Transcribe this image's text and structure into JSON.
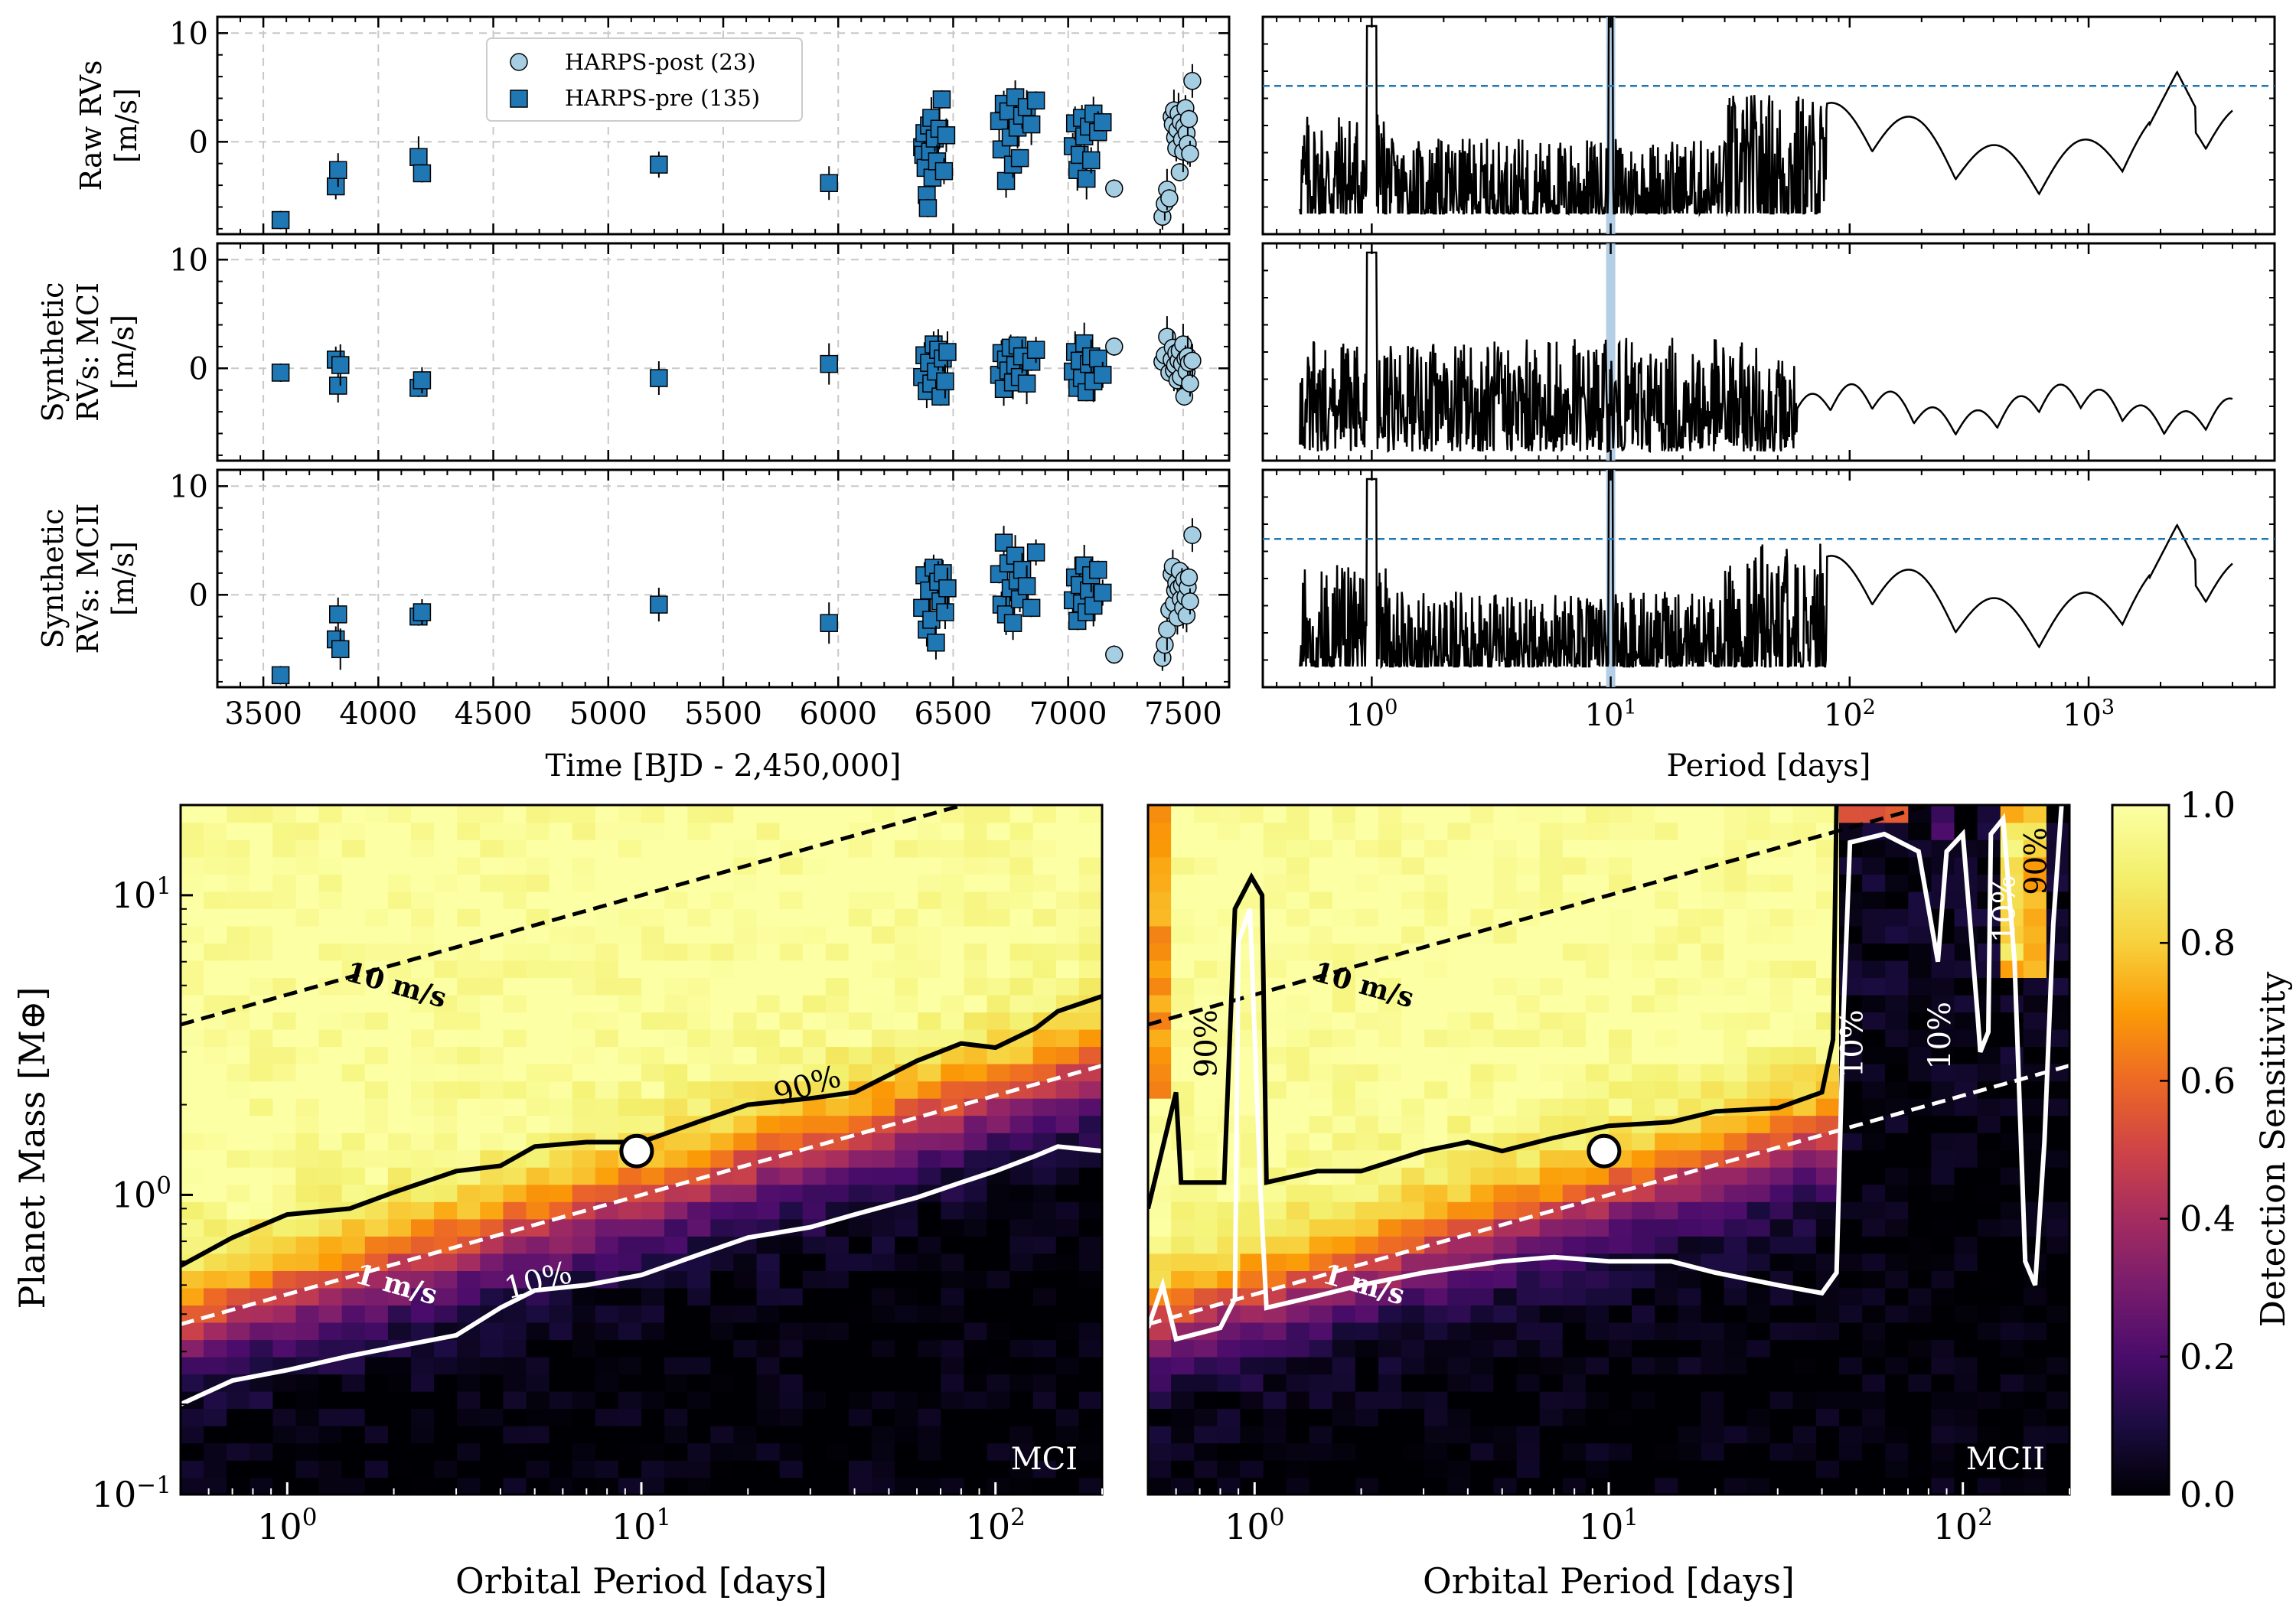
{
  "legend": {
    "harps_post": "HARPS-post (23)",
    "harps_pre": "HARPS-pre (135)"
  },
  "colors": {
    "harps_pre": "#1f77b4",
    "harps_post": "#a6cee3",
    "threshold_line": "#1f77b4",
    "period_band": "#a6c6e0",
    "contour_90": "#000000",
    "contour_10": "#ffffff"
  },
  "chart_data": [
    {
      "type": "scatter",
      "panel": "rv-raw",
      "ylabel": [
        "Raw RVs",
        "[m/s]"
      ],
      "xlim": [
        3300,
        7700
      ],
      "ylim": [
        -8.5,
        11.5
      ],
      "yticks": [
        -10,
        0,
        10
      ],
      "ytick_labels": [
        "",
        "0",
        "10"
      ],
      "series": [
        {
          "name": "HARPS-pre (135)",
          "x": [
            3575,
            3815,
            3825,
            4175,
            4190,
            5220,
            5960,
            6365,
            6370,
            6375,
            6380,
            6385,
            6390,
            6395,
            6400,
            6405,
            6410,
            6420,
            6430,
            6440,
            6450,
            6460,
            6470,
            6700,
            6710,
            6720,
            6730,
            6740,
            6750,
            6760,
            6770,
            6780,
            6790,
            6800,
            6820,
            6840,
            6860,
            7020,
            7030,
            7040,
            7050,
            7060,
            7070,
            7080,
            7090,
            7100,
            7110,
            7130,
            7150
          ],
          "y": [
            -7.2,
            -4.1,
            -2.6,
            -1.4,
            -2.9,
            -2.1,
            -3.8,
            -0.5,
            -1.2,
            0.8,
            -2.4,
            -4.9,
            -6.1,
            1.5,
            -0.9,
            2.2,
            -3.3,
            0.3,
            -1.8,
            1.2,
            3.9,
            -2.7,
            0.6,
            1.9,
            -0.7,
            3.5,
            -3.6,
            2.8,
            0.4,
            -2.1,
            4.1,
            1.3,
            -1.5,
            2.4,
            3.2,
            1.6,
            3.8,
            -0.4,
            1.7,
            -2.6,
            -1.2,
            2.2,
            0.5,
            -3.4,
            1.4,
            -1.7,
            2.6,
            0.9,
            1.8
          ]
        },
        {
          "name": "HARPS-post (23)",
          "x": [
            7200,
            7410,
            7420,
            7430,
            7440,
            7450,
            7455,
            7460,
            7465,
            7470,
            7475,
            7480,
            7485,
            7490,
            7495,
            7500,
            7505,
            7510,
            7515,
            7520,
            7525,
            7530,
            7540
          ],
          "y": [
            -4.3,
            -6.9,
            -5.7,
            -4.4,
            -5.2,
            2.3,
            1.6,
            2.9,
            0.4,
            -0.6,
            1.1,
            2.6,
            -2.8,
            1.8,
            0.2,
            -0.9,
            1.4,
            3.1,
            0.8,
            -0.2,
            2.1,
            -1.1,
            5.6
          ]
        }
      ]
    },
    {
      "type": "scatter",
      "panel": "rv-mci",
      "ylabel": [
        "Synthetic",
        "RVs: MCI",
        "[m/s]"
      ],
      "xlim": [
        3300,
        7700
      ],
      "ylim": [
        -8.5,
        11.5
      ],
      "yticks": [
        -10,
        0,
        10
      ],
      "ytick_labels": [
        "",
        "0",
        "10"
      ],
      "series": [
        {
          "name": "HARPS-pre (135)",
          "x": [
            3575,
            3815,
            3825,
            3835,
            4175,
            4190,
            5220,
            5960,
            6365,
            6375,
            6385,
            6395,
            6405,
            6415,
            6425,
            6435,
            6445,
            6455,
            6465,
            6475,
            6700,
            6710,
            6720,
            6730,
            6740,
            6750,
            6760,
            6770,
            6780,
            6790,
            6800,
            6820,
            6840,
            6860,
            7020,
            7030,
            7040,
            7050,
            7060,
            7070,
            7080,
            7090,
            7100,
            7110,
            7130,
            7150
          ],
          "y": [
            -0.4,
            0.8,
            -1.6,
            0.3,
            -1.8,
            -1.1,
            -0.9,
            0.4,
            -0.8,
            1.2,
            -2.1,
            0.5,
            -1.4,
            2.2,
            -0.3,
            1.7,
            -2.6,
            0.9,
            -1.2,
            1.5,
            -0.6,
            1.4,
            -1.9,
            0.8,
            -0.2,
            1.9,
            -1.3,
            0.3,
            2.1,
            -0.8,
            1.1,
            -1.4,
            0.6,
            1.7,
            -0.3,
            1.5,
            -1.8,
            0.7,
            -0.9,
            2.3,
            -2.2,
            0.4,
            1.1,
            -1.2,
            0.9,
            -0.6
          ]
        },
        {
          "name": "HARPS-post (23)",
          "x": [
            7200,
            7410,
            7420,
            7430,
            7440,
            7450,
            7455,
            7460,
            7465,
            7470,
            7475,
            7480,
            7485,
            7490,
            7495,
            7500,
            7505,
            7510,
            7515,
            7520,
            7525,
            7530,
            7540
          ],
          "y": [
            2.0,
            0.6,
            1.2,
            2.9,
            -0.4,
            0.8,
            1.9,
            -0.2,
            0.3,
            1.4,
            -1.1,
            0.7,
            1.6,
            -0.8,
            0.4,
            2.2,
            -2.6,
            0.9,
            -0.3,
            1.1,
            0.5,
            -1.4,
            0.7
          ]
        }
      ]
    },
    {
      "type": "scatter",
      "panel": "rv-mcii",
      "ylabel": [
        "Synthetic",
        "RVs: MCII",
        "[m/s]"
      ],
      "xlabel": "Time [BJD - 2,450,000]",
      "xlim": [
        3300,
        7700
      ],
      "ylim": [
        -8.5,
        11.5
      ],
      "xticks": [
        3500,
        4000,
        4500,
        5000,
        5500,
        6000,
        6500,
        7000,
        7500
      ],
      "yticks": [
        -10,
        0,
        10
      ],
      "ytick_labels": [
        "",
        "0",
        "10"
      ],
      "series": [
        {
          "name": "HARPS-pre (135)",
          "x": [
            3575,
            3815,
            3825,
            3835,
            4175,
            4190,
            5220,
            5960,
            6365,
            6375,
            6385,
            6395,
            6405,
            6415,
            6425,
            6435,
            6445,
            6455,
            6465,
            6475,
            6700,
            6710,
            6720,
            6730,
            6740,
            6750,
            6760,
            6770,
            6780,
            6790,
            6800,
            6820,
            6840,
            6860,
            7020,
            7030,
            7040,
            7050,
            7060,
            7070,
            7080,
            7090,
            7100,
            7110,
            7130,
            7150
          ],
          "y": [
            -7.4,
            -4.1,
            -1.8,
            -5.0,
            -2.0,
            -1.6,
            -0.9,
            -2.6,
            -1.2,
            1.8,
            -3.2,
            0.4,
            -2.3,
            2.5,
            -4.4,
            1.2,
            -0.6,
            2.0,
            -1.6,
            0.6,
            1.9,
            -0.9,
            4.8,
            -1.8,
            2.9,
            0.6,
            -2.6,
            3.6,
            1.3,
            -0.4,
            2.3,
            0.8,
            -1.2,
            3.9,
            -0.5,
            1.6,
            -2.4,
            0.9,
            -0.8,
            2.7,
            -1.6,
            0.4,
            1.8,
            -1.0,
            2.3,
            0.2
          ]
        },
        {
          "name": "HARPS-post (23)",
          "x": [
            7200,
            7410,
            7420,
            7430,
            7440,
            7450,
            7455,
            7460,
            7465,
            7470,
            7475,
            7480,
            7485,
            7490,
            7495,
            7500,
            7505,
            7510,
            7515,
            7520,
            7525,
            7530,
            7540
          ],
          "y": [
            -5.5,
            -5.8,
            -4.6,
            -3.2,
            -1.4,
            1.9,
            2.6,
            -0.8,
            0.4,
            1.1,
            -2.1,
            0.6,
            2.2,
            -0.4,
            0.9,
            -1.2,
            1.4,
            -0.2,
            -1.9,
            0.7,
            1.6,
            -0.6,
            5.5
          ]
        }
      ]
    },
    {
      "type": "line",
      "panel": "periodogram-raw",
      "xscale": "log",
      "xlim": [
        0.35,
        6000
      ],
      "threshold_fraction": 0.62,
      "band_period": 10
    },
    {
      "type": "line",
      "panel": "periodogram-mci",
      "xscale": "log",
      "xlim": [
        0.35,
        6000
      ],
      "band_period": 10
    },
    {
      "type": "line",
      "panel": "periodogram-mcii",
      "xscale": "log",
      "xlabel": "Period [days]",
      "xlim": [
        0.35,
        6000
      ],
      "xticks": [
        1,
        10,
        100,
        1000
      ],
      "xtick_labels": [
        [
          "10",
          "0"
        ],
        [
          "10",
          "1"
        ],
        [
          "10",
          "2"
        ],
        [
          "10",
          "3"
        ]
      ],
      "threshold_fraction": 0.62,
      "band_period": 10
    },
    {
      "type": "heatmap",
      "panel": "sensitivity-mci",
      "title": "MCI",
      "xlabel": "Orbital Period [days]",
      "ylabel": "Planet Mass [M⊕]",
      "xscale": "log",
      "yscale": "log",
      "xlim": [
        0.5,
        200
      ],
      "ylim": [
        0.1,
        20
      ],
      "xtick_labels": [
        [
          "10",
          "0"
        ],
        [
          "10",
          "1"
        ],
        [
          "10",
          "2"
        ]
      ],
      "ytick_labels": [
        [
          "10",
          "−1"
        ],
        [
          "10",
          "0"
        ],
        [
          "10",
          "1"
        ]
      ],
      "rv_lines": [
        {
          "label": "10 m/s",
          "mass_at_0_5d": 3.7,
          "mass_at_200d": 27,
          "color": "#000000"
        },
        {
          "label": "1 m/s",
          "mass_at_0_5d": 0.37,
          "mass_at_200d": 2.7,
          "color": "#ffffff"
        }
      ],
      "contours": [
        {
          "label": "90%",
          "period": [
            0.5,
            0.7,
            1.0,
            1.5,
            2,
            3,
            4,
            5,
            7,
            10,
            15,
            20,
            30,
            40,
            60,
            80,
            100,
            130,
            150,
            200
          ],
          "mass": [
            0.58,
            0.72,
            0.86,
            0.9,
            1.02,
            1.2,
            1.25,
            1.45,
            1.5,
            1.5,
            1.78,
            2.0,
            2.1,
            2.2,
            2.8,
            3.2,
            3.1,
            3.6,
            4.1,
            4.6
          ]
        },
        {
          "label": "10%",
          "period": [
            0.5,
            0.7,
            1.0,
            1.5,
            2,
            3,
            4,
            5,
            7,
            10,
            15,
            20,
            30,
            40,
            60,
            80,
            100,
            130,
            150,
            200
          ],
          "mass": [
            0.2,
            0.24,
            0.26,
            0.29,
            0.31,
            0.34,
            0.42,
            0.48,
            0.5,
            0.54,
            0.64,
            0.72,
            0.78,
            0.86,
            0.98,
            1.1,
            1.2,
            1.35,
            1.45,
            1.4
          ]
        }
      ],
      "planet": {
        "period": 9.7,
        "mass": 1.4
      }
    },
    {
      "type": "heatmap",
      "panel": "sensitivity-mcii",
      "title": "MCII",
      "xlabel": "Orbital Period [days]",
      "xscale": "log",
      "yscale": "log",
      "xlim": [
        0.5,
        200
      ],
      "ylim": [
        0.1,
        20
      ],
      "xtick_labels": [
        [
          "10",
          "0"
        ],
        [
          "10",
          "1"
        ],
        [
          "10",
          "2"
        ]
      ],
      "rv_lines": [
        {
          "label": "10 m/s",
          "mass_at_0_5d": 3.7,
          "mass_at_200d": 27,
          "color": "#000000"
        },
        {
          "label": "1 m/s",
          "mass_at_0_5d": 0.37,
          "mass_at_200d": 2.7,
          "color": "#ffffff"
        }
      ],
      "contour_labels": [
        "90%",
        "10%",
        "10%",
        "10%",
        "90%"
      ],
      "planet": {
        "period": 9.7,
        "mass": 1.4
      }
    },
    {
      "type": "colorbar",
      "label": "Detection Sensitivity",
      "range": [
        0.0,
        1.0
      ],
      "ticks": [
        "0.0",
        "0.2",
        "0.4",
        "0.6",
        "0.8",
        "1.0"
      ],
      "colormap": "inferno"
    }
  ]
}
